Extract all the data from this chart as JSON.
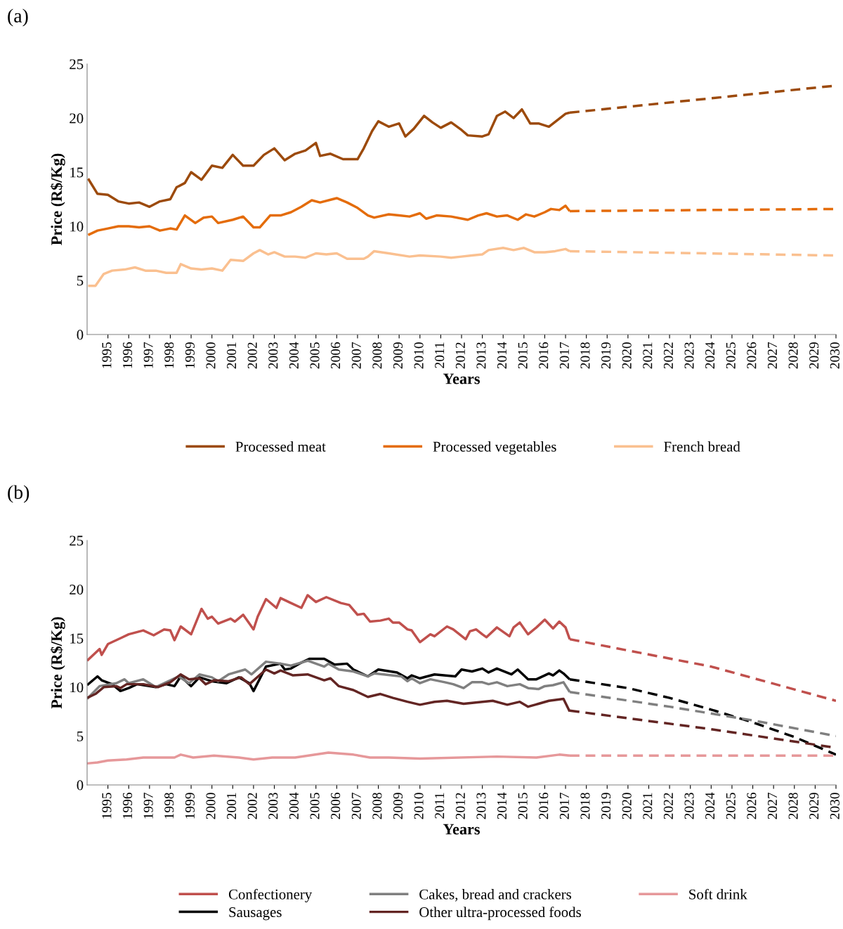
{
  "chart_data": [
    {
      "type": "line",
      "title": "(a)",
      "xlabel": "Years",
      "ylabel": "Price (R$/Kg)",
      "xlim": [
        1994,
        2030
      ],
      "xticks": [
        1995,
        1996,
        1997,
        1998,
        1999,
        2000,
        2001,
        2002,
        2003,
        2004,
        2005,
        2006,
        2007,
        2008,
        2009,
        2010,
        2011,
        2012,
        2013,
        2014,
        2015,
        2016,
        2017,
        2018,
        2019,
        2020,
        2021,
        2022,
        2023,
        2024,
        2025,
        2026,
        2027,
        2028,
        2029,
        2030
      ],
      "ylim": [
        0,
        25
      ],
      "yticks": [
        0,
        5,
        10,
        15,
        20,
        25
      ],
      "grid": false,
      "legend": "bottom",
      "line_style": "solid",
      "series": [
        {
          "name": "Processed meat",
          "color": "#9c4a0c",
          "x": [
            1994.05,
            1994.5,
            1995,
            1995.5,
            1996,
            1996.5,
            1997,
            1997.5,
            1998,
            1998.3,
            1998.7,
            1999,
            1999.5,
            2000,
            2000.5,
            2001,
            2001.5,
            2002,
            2002.5,
            2003,
            2003.5,
            2004,
            2004.5,
            2005,
            2005.2,
            2005.7,
            2006.3,
            2007,
            2007.3,
            2007.7,
            2008,
            2008.5,
            2009,
            2009.3,
            2009.7,
            2010.2,
            2010.6,
            2011,
            2011.5,
            2012,
            2012.3,
            2013,
            2013.3,
            2013.7,
            2014.1,
            2014.5,
            2014.9,
            2015.3,
            2015.7,
            2016.2,
            2016.6,
            2017,
            2017.2
          ],
          "values": [
            14.4,
            13.0,
            12.9,
            12.3,
            12.1,
            12.2,
            11.8,
            12.3,
            12.5,
            13.6,
            14.0,
            15.0,
            14.3,
            15.6,
            15.4,
            16.6,
            15.6,
            15.6,
            16.6,
            17.2,
            16.1,
            16.7,
            17.0,
            17.7,
            16.5,
            16.7,
            16.2,
            16.2,
            17.2,
            18.8,
            19.7,
            19.2,
            19.5,
            18.3,
            19.0,
            20.2,
            19.6,
            19.1,
            19.6,
            18.9,
            18.4,
            18.3,
            18.5,
            20.2,
            20.6,
            20.0,
            20.8,
            19.5,
            19.5,
            19.2,
            19.8,
            20.4,
            20.5
          ]
        },
        {
          "name": "Processed vegetables",
          "color": "#e46c0a",
          "x": [
            1994.05,
            1994.5,
            1995,
            1995.5,
            1996,
            1996.5,
            1997,
            1997.5,
            1998,
            1998.3,
            1998.7,
            1999.2,
            1999.6,
            2000,
            2000.3,
            2001,
            2001.5,
            2002,
            2002.3,
            2002.8,
            2003.3,
            2003.8,
            2004.3,
            2004.8,
            2005.2,
            2005.8,
            2006,
            2006.5,
            2007,
            2007.5,
            2007.8,
            2008.5,
            2009,
            2009.5,
            2010,
            2010.3,
            2010.8,
            2011.5,
            2012.3,
            2012.8,
            2013.2,
            2013.7,
            2014.2,
            2014.7,
            2015.1,
            2015.5,
            2016,
            2016.3,
            2016.7,
            2017,
            2017.2
          ],
          "values": [
            9.2,
            9.6,
            9.8,
            10.0,
            10.0,
            9.9,
            10.0,
            9.6,
            9.8,
            9.7,
            11.0,
            10.3,
            10.8,
            10.9,
            10.3,
            10.6,
            10.9,
            9.9,
            9.9,
            11.0,
            11.0,
            11.3,
            11.8,
            12.4,
            12.2,
            12.5,
            12.6,
            12.2,
            11.7,
            11.0,
            10.8,
            11.1,
            11.0,
            10.9,
            11.2,
            10.7,
            11.0,
            10.9,
            10.6,
            11.0,
            11.2,
            10.9,
            11.0,
            10.6,
            11.1,
            10.9,
            11.3,
            11.6,
            11.5,
            11.9,
            11.4
          ]
        },
        {
          "name": "French bread",
          "color": "#fac090",
          "x": [
            1994.05,
            1994.4,
            1994.8,
            1995.2,
            1995.8,
            1996.3,
            1996.8,
            1997.3,
            1997.8,
            1998.3,
            1998.5,
            1999,
            1999.5,
            2000,
            2000.5,
            2000.9,
            2001.5,
            2002,
            2002.3,
            2002.7,
            2003,
            2003.5,
            2004,
            2004.5,
            2005,
            2005.5,
            2006,
            2006.5,
            2007.3,
            2007.5,
            2007.8,
            2008.5,
            2009.5,
            2010,
            2011,
            2011.5,
            2012,
            2012.5,
            2013,
            2013.3,
            2014,
            2014.5,
            2015,
            2015.5,
            2016,
            2016.5,
            2017,
            2017.2
          ],
          "values": [
            4.5,
            4.5,
            5.6,
            5.9,
            6.0,
            6.2,
            5.9,
            5.9,
            5.7,
            5.7,
            6.5,
            6.1,
            6.0,
            6.1,
            5.9,
            6.9,
            6.8,
            7.5,
            7.8,
            7.4,
            7.6,
            7.2,
            7.2,
            7.1,
            7.5,
            7.4,
            7.5,
            7.0,
            7.0,
            7.2,
            7.7,
            7.5,
            7.2,
            7.3,
            7.2,
            7.1,
            7.2,
            7.3,
            7.4,
            7.8,
            8.0,
            7.8,
            8.0,
            7.6,
            7.6,
            7.7,
            7.9,
            7.7
          ]
        },
        {
          "color": "#9c4a0c",
          "line_style": "dashed",
          "x": [
            2017.2,
            2030
          ],
          "values": [
            20.5,
            23.0
          ]
        },
        {
          "color": "#e46c0a",
          "line_style": "dashed",
          "x": [
            2017.2,
            2030
          ],
          "values": [
            11.4,
            11.6
          ]
        },
        {
          "color": "#fac090",
          "line_style": "dashed",
          "x": [
            2017.2,
            2030
          ],
          "values": [
            7.7,
            7.3
          ]
        }
      ]
    },
    {
      "type": "line",
      "title": "(b)",
      "xlabel": "Years",
      "ylabel": "Price (R$/Kg)",
      "xlim": [
        1994,
        2030
      ],
      "xticks": [
        1995,
        1996,
        1997,
        1998,
        1999,
        2000,
        2001,
        2002,
        2003,
        2004,
        2005,
        2006,
        2007,
        2008,
        2009,
        2010,
        2011,
        2012,
        2013,
        2014,
        2015,
        2016,
        2017,
        2018,
        2019,
        2020,
        2021,
        2022,
        2023,
        2024,
        2025,
        2026,
        2027,
        2028,
        2029,
        2030
      ],
      "ylim": [
        0,
        25
      ],
      "yticks": [
        0,
        5,
        10,
        15,
        20,
        25
      ],
      "grid": false,
      "legend": "bottom",
      "line_style": "solid",
      "series": [
        {
          "name": "Confectionery",
          "color": "#c0504d",
          "x": [
            1994.0,
            1994.6,
            1994.7,
            1995.0,
            1995.6,
            1996.0,
            1996.7,
            1997.2,
            1997.7,
            1998.0,
            1998.2,
            1998.5,
            1999.0,
            1999.5,
            1999.8,
            2000.0,
            2000.3,
            2000.9,
            2001.1,
            2001.5,
            2001.8,
            2002.0,
            2002.2,
            2002.6,
            2003.1,
            2003.3,
            2003.8,
            2004.3,
            2004.6,
            2005.0,
            2005.5,
            2006.2,
            2006.6,
            2007.0,
            2007.3,
            2007.6,
            2008.1,
            2008.5,
            2008.7,
            2009.0,
            2009.4,
            2009.6,
            2010.0,
            2010.5,
            2010.7,
            2011.3,
            2011.6,
            2012.2,
            2012.4,
            2012.7,
            2013.0,
            2013.2,
            2013.7,
            2014.3,
            2014.5,
            2014.8,
            2015.2,
            2015.6,
            2016.0,
            2016.4,
            2016.7,
            2017.0,
            2017.2
          ],
          "values": [
            12.7,
            13.9,
            13.3,
            14.4,
            15.0,
            15.4,
            15.8,
            15.3,
            15.9,
            15.8,
            14.8,
            16.2,
            15.4,
            18.0,
            17.0,
            17.2,
            16.5,
            17.0,
            16.7,
            17.4,
            16.5,
            15.9,
            17.2,
            19.0,
            18.1,
            19.1,
            18.6,
            18.1,
            19.4,
            18.7,
            19.2,
            18.6,
            18.4,
            17.4,
            17.5,
            16.7,
            16.8,
            17.0,
            16.6,
            16.6,
            15.9,
            15.8,
            14.6,
            15.4,
            15.2,
            16.2,
            15.9,
            14.9,
            15.7,
            15.9,
            15.4,
            15.1,
            16.1,
            15.2,
            16.1,
            16.6,
            15.4,
            16.1,
            16.9,
            16.0,
            16.7,
            16.1,
            14.9
          ]
        },
        {
          "name": "Sausages",
          "color": "#000000",
          "x": [
            1994.0,
            1994.5,
            1994.7,
            1995.2,
            1995.6,
            1996.0,
            1996.4,
            1997.3,
            1997.8,
            1998.2,
            1998.5,
            1999.0,
            1999.4,
            2000.0,
            2000.7,
            2001.3,
            2001.8,
            2002.0,
            2002.6,
            2003.3,
            2003.5,
            2003.8,
            2004.2,
            2004.7,
            2005.4,
            2005.9,
            2006.5,
            2006.8,
            2007.5,
            2008.0,
            2008.9,
            2009.4,
            2009.6,
            2010.0,
            2010.7,
            2011.7,
            2012.0,
            2012.5,
            2013.0,
            2013.3,
            2013.7,
            2014.4,
            2014.7,
            2015.2,
            2015.6,
            2016.2,
            2016.4,
            2016.7,
            2016.9,
            2017.2
          ],
          "values": [
            10.2,
            11.1,
            10.7,
            10.3,
            9.6,
            9.9,
            10.3,
            10.0,
            10.3,
            10.1,
            11.1,
            10.1,
            11.0,
            10.6,
            10.4,
            11.0,
            10.4,
            9.6,
            12.1,
            12.4,
            11.8,
            11.9,
            12.4,
            12.9,
            12.9,
            12.3,
            12.4,
            11.8,
            11.1,
            11.8,
            11.5,
            10.9,
            11.2,
            10.9,
            11.3,
            11.1,
            11.8,
            11.6,
            11.9,
            11.5,
            11.9,
            11.3,
            11.8,
            10.8,
            10.8,
            11.4,
            11.2,
            11.7,
            11.4,
            10.8
          ]
        },
        {
          "name": "Cakes, bread and crackers",
          "color": "#808080",
          "x": [
            1994.0,
            1994.6,
            1995.4,
            1995.8,
            1996.0,
            1996.7,
            1997.3,
            1998.4,
            1998.9,
            1999.4,
            2000.0,
            2000.3,
            2000.8,
            2001.6,
            2001.9,
            2002.6,
            2003.3,
            2003.8,
            2004.6,
            2005.4,
            2005.6,
            2006.1,
            2006.8,
            2007.5,
            2007.8,
            2009.1,
            2009.4,
            2009.6,
            2010.0,
            2010.5,
            2011.2,
            2011.6,
            2012.1,
            2012.5,
            2013.0,
            2013.3,
            2013.7,
            2014.2,
            2014.8,
            2015.2,
            2015.7,
            2016.0,
            2016.4,
            2016.9,
            2017.2
          ],
          "values": [
            8.8,
            10.1,
            10.4,
            10.8,
            10.4,
            10.8,
            10.0,
            11.1,
            10.4,
            11.3,
            11.0,
            10.6,
            11.3,
            11.8,
            11.3,
            12.6,
            12.4,
            12.2,
            12.7,
            12.1,
            12.4,
            11.8,
            11.6,
            11.1,
            11.4,
            11.1,
            10.6,
            10.9,
            10.4,
            10.8,
            10.5,
            10.3,
            9.9,
            10.5,
            10.5,
            10.3,
            10.5,
            10.1,
            10.3,
            9.9,
            9.8,
            10.1,
            10.2,
            10.5,
            9.5
          ]
        },
        {
          "name": "Other ultra-processed foods",
          "color": "#632523",
          "x": [
            1994.0,
            1994.4,
            1994.8,
            1995.4,
            1995.6,
            1995.9,
            1996.7,
            1997.4,
            1998.0,
            1998.5,
            1998.9,
            1999.4,
            1999.7,
            2000.1,
            2000.8,
            2001.4,
            2001.8,
            2002.6,
            2003.0,
            2003.3,
            2003.9,
            2004.6,
            2005.4,
            2005.7,
            2006.1,
            2006.8,
            2007.5,
            2008.1,
            2008.7,
            2009.4,
            2010.0,
            2010.7,
            2011.3,
            2012.1,
            2013.0,
            2013.5,
            2014.2,
            2014.8,
            2015.2,
            2015.7,
            2016.2,
            2016.9,
            2017.2
          ],
          "values": [
            8.9,
            9.3,
            10.0,
            10.1,
            9.9,
            10.3,
            10.3,
            10.0,
            10.5,
            11.3,
            10.8,
            10.9,
            10.3,
            10.7,
            10.6,
            11.0,
            10.3,
            11.8,
            11.4,
            11.7,
            11.2,
            11.3,
            10.7,
            10.9,
            10.1,
            9.7,
            9.0,
            9.3,
            8.9,
            8.5,
            8.2,
            8.5,
            8.6,
            8.3,
            8.5,
            8.6,
            8.2,
            8.5,
            8.0,
            8.3,
            8.6,
            8.8,
            7.5
          ]
        },
        {
          "name": "Soft drink",
          "color": "#e6989a",
          "x": [
            1994.0,
            1994.5,
            1995.0,
            1995.9,
            1996.7,
            1998.2,
            1998.5,
            1999.1,
            2000.1,
            2001.3,
            2002.0,
            2002.9,
            2004.0,
            2005.6,
            2006.8,
            2007.6,
            2008.5,
            2010.0,
            2013.7,
            2015.6,
            2016.7,
            2017.2
          ],
          "values": [
            2.2,
            2.3,
            2.5,
            2.6,
            2.8,
            2.8,
            3.1,
            2.8,
            3.0,
            2.8,
            2.6,
            2.8,
            2.8,
            3.3,
            3.1,
            2.8,
            2.8,
            2.7,
            2.9,
            2.8,
            3.1,
            3.0
          ]
        },
        {
          "color": "#c0504d",
          "line_style": "dashed",
          "x": [
            2017.2,
            2024,
            2030
          ],
          "values": [
            14.9,
            12.1,
            8.6
          ]
        },
        {
          "color": "#000000",
          "line_style": "dashed",
          "x": [
            2017.2,
            2020,
            2022,
            2024,
            2026,
            2028,
            2030
          ],
          "values": [
            10.8,
            9.9,
            8.9,
            7.7,
            6.4,
            4.9,
            3.1
          ]
        },
        {
          "color": "#808080",
          "line_style": "dashed",
          "x": [
            2017.2,
            2022,
            2026,
            2030
          ],
          "values": [
            9.5,
            8.0,
            6.6,
            5.0
          ]
        },
        {
          "color": "#632523",
          "line_style": "dashed",
          "x": [
            2017.2,
            2024,
            2030
          ],
          "values": [
            7.6,
            5.7,
            3.8
          ]
        },
        {
          "color": "#e6989a",
          "line_style": "dashed",
          "x": [
            2017.2,
            2030
          ],
          "values": [
            3.0,
            3.0
          ]
        }
      ]
    }
  ]
}
